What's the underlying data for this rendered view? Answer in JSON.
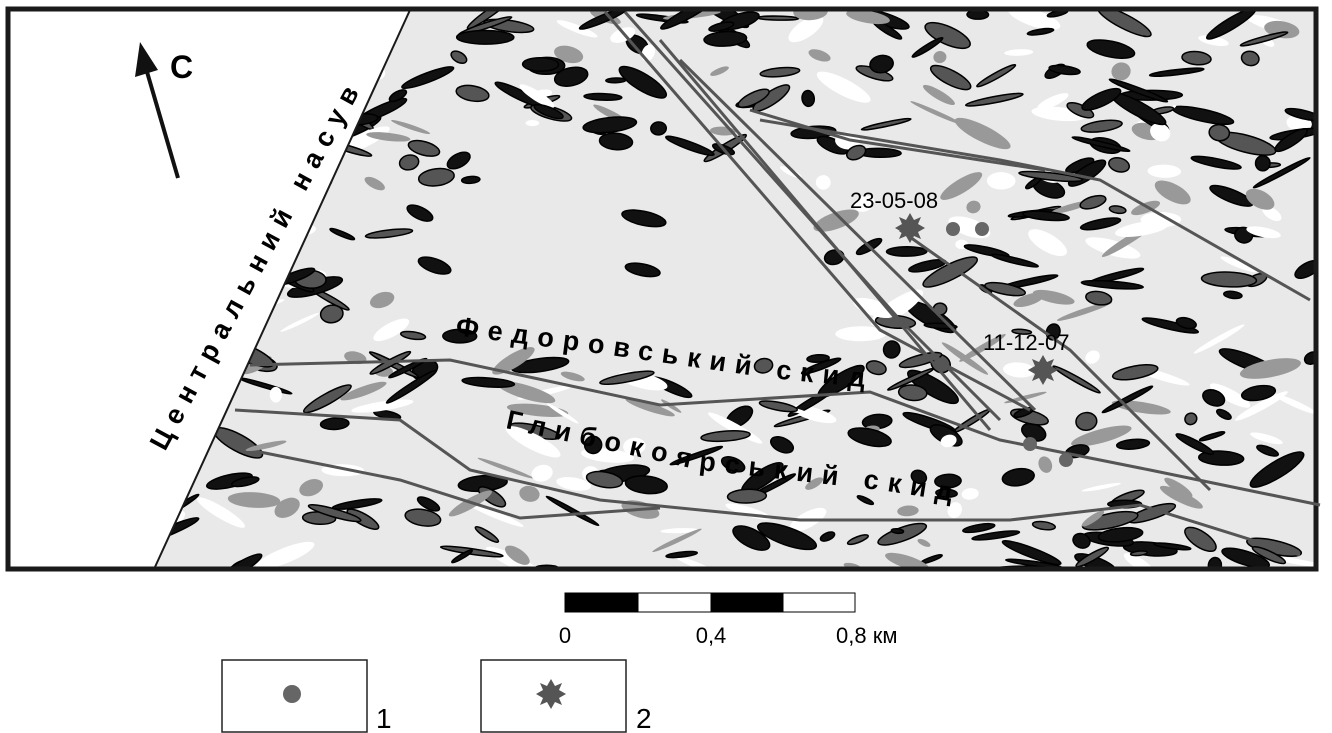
{
  "north": "С",
  "labels": {
    "thrust": "Центральний насув",
    "fault1": "Федоровський скид",
    "fault2": "Глибокоярський скид"
  },
  "events": [
    "23-05-08",
    "11-12-07"
  ],
  "scale": {
    "labels": [
      "0",
      "0,4",
      "0,8 км"
    ]
  },
  "legend": [
    "1",
    "2"
  ]
}
